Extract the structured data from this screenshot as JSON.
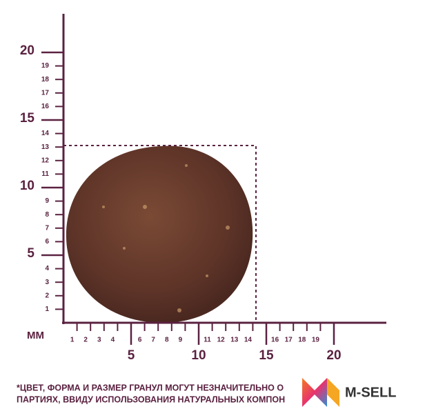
{
  "ruler": {
    "unit": "ММ",
    "y_major": [
      5,
      10,
      15,
      20
    ],
    "y_minor": [
      1,
      2,
      3,
      4,
      6,
      7,
      8,
      9,
      11,
      12,
      13,
      14,
      16,
      17,
      18,
      19
    ],
    "x_major": [
      5,
      10,
      15,
      20
    ],
    "x_minor": [
      1,
      2,
      3,
      4,
      6,
      7,
      8,
      9,
      11,
      12,
      13,
      14,
      16,
      17,
      18,
      19
    ]
  },
  "footnote": {
    "lines": [
      "*ЦВЕТ, ФОРМА И РАЗМЕР ГРАНУЛ МОГУТ НЕЗНАЧИТЕЛЬНО О",
      "ПАРТИЯХ, ВВИДУ ИСПОЛЬЗОВАНИЯ НАТУРАЛЬНЫХ КОМПОН"
    ]
  },
  "logo": {
    "text": "M-SELL"
  }
}
